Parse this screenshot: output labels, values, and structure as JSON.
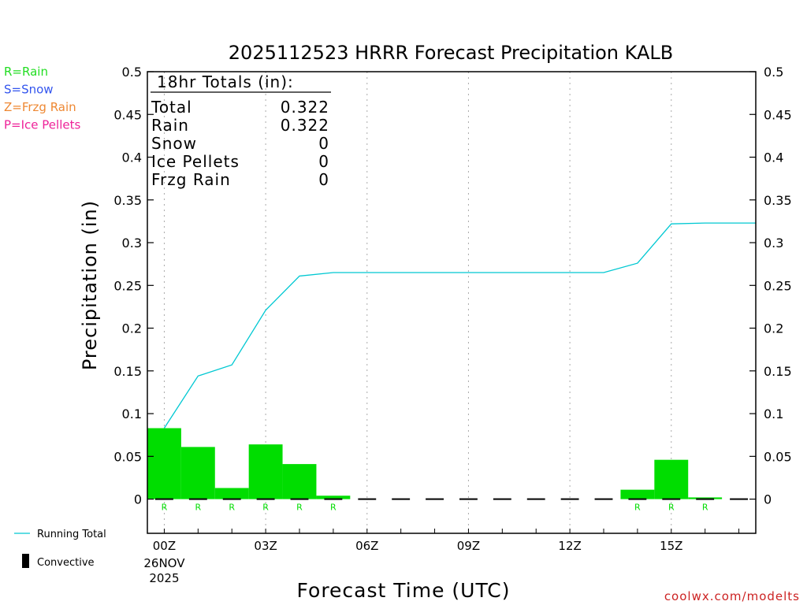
{
  "chart_data": {
    "type": "bar",
    "title": "2025112523 HRRR Forecast Precipitation KALB",
    "xlabel": "Forecast Time (UTC)",
    "ylabel": "Precipitation (in)",
    "ylim": [
      -0.04,
      0.5
    ],
    "yticks": [
      "0",
      "0.05",
      "0.1",
      "0.15",
      "0.2",
      "0.25",
      "0.3",
      "0.35",
      "0.4",
      "0.45",
      "0.5"
    ],
    "ytick_values": [
      0,
      0.05,
      0.1,
      0.15,
      0.2,
      0.25,
      0.3,
      0.35,
      0.4,
      0.45,
      0.5
    ],
    "xlim": [
      -0.5,
      17.5
    ],
    "xticks": [
      {
        "hour": 0,
        "label": "00Z",
        "date": "26NOV",
        "year": "2025"
      },
      {
        "hour": 3,
        "label": "03Z"
      },
      {
        "hour": 6,
        "label": "06Z"
      },
      {
        "hour": 9,
        "label": "09Z"
      },
      {
        "hour": 12,
        "label": "12Z"
      },
      {
        "hour": 15,
        "label": "15Z"
      }
    ],
    "grid": "vertical dotted",
    "hours": [
      0,
      1,
      2,
      3,
      4,
      5,
      6,
      7,
      8,
      9,
      10,
      11,
      12,
      13,
      14,
      15,
      16,
      17
    ],
    "series": [
      {
        "name": "Rain",
        "type": "bar",
        "color": "#00dd00",
        "values": [
          0.083,
          0.061,
          0.013,
          0.064,
          0.041,
          0.004,
          0,
          0,
          0,
          0,
          0,
          0,
          0,
          0,
          0.011,
          0.046,
          0.002,
          0
        ]
      },
      {
        "name": "Running Total",
        "type": "line",
        "color": "#00c8d2",
        "values": [
          0.083,
          0.144,
          0.157,
          0.221,
          0.261,
          0.265,
          0.265,
          0.265,
          0.265,
          0.265,
          0.265,
          0.265,
          0.265,
          0.265,
          0.276,
          0.322,
          0.323,
          0.323
        ]
      },
      {
        "name": "Convective",
        "type": "bar",
        "color": "#000000",
        "values": [
          0,
          0,
          0,
          0,
          0,
          0,
          0,
          0,
          0,
          0,
          0,
          0,
          0,
          0,
          0,
          0,
          0,
          0
        ]
      }
    ],
    "ptype_labels": [
      "R",
      "R",
      "R",
      "R",
      "R",
      "R",
      "",
      "",
      "",
      "",
      "",
      "",
      "",
      "",
      "R",
      "R",
      "R",
      ""
    ],
    "ptype_color": "#00dd00",
    "totals_box": {
      "header": "18hr Totals (in):",
      "rows": [
        {
          "label": "Total",
          "value": "0.322"
        },
        {
          "label": "Rain",
          "value": "0.322"
        },
        {
          "label": "Snow",
          "value": "0"
        },
        {
          "label": "Ice Pellets",
          "value": "0"
        },
        {
          "label": "Frzg Rain",
          "value": "0"
        }
      ]
    },
    "ptype_legend": [
      {
        "text": "R=Rain",
        "color": "#22dd22"
      },
      {
        "text": "S=Snow",
        "color": "#3355ee"
      },
      {
        "text": "Z=Frzg Rain",
        "color": "#ee8833"
      },
      {
        "text": "P=Ice Pellets",
        "color": "#ee2299"
      }
    ],
    "legend": [
      {
        "text": "Running Total",
        "kind": "line",
        "color": "#00c8d2"
      },
      {
        "text": "Convective",
        "kind": "bar",
        "color": "#000000"
      }
    ],
    "credit": "coolwx.com/modelts",
    "credit_color": "#cc2222"
  }
}
